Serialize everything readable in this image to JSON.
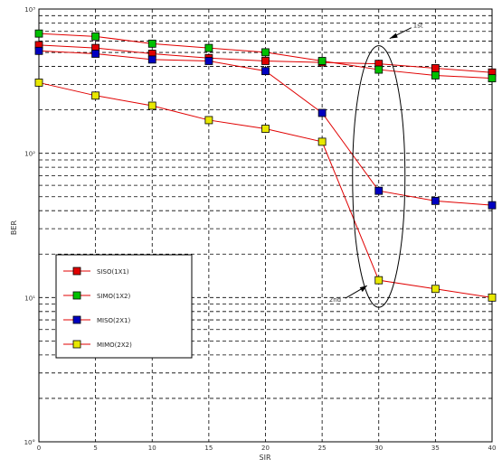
{
  "chart_data": {
    "type": "line",
    "xlabel": "SIR",
    "ylabel": "BER",
    "x_ticks": [
      "0",
      "5",
      "10",
      "15",
      "20",
      "25",
      "30",
      "35",
      "40"
    ],
    "y_ticks": [
      "10°",
      "10¹",
      "10²",
      "10³"
    ],
    "xlim": [
      0,
      40
    ],
    "ylim": [
      0,
      3
    ],
    "y_scale": "log",
    "grid": true,
    "legend_position": "bottom-left",
    "x": [
      0,
      5,
      10,
      15,
      20,
      25,
      30,
      35,
      40
    ],
    "series": [
      {
        "name": "SISO(1X1)",
        "color": "#e00000",
        "marker": "square",
        "values": [
          2.75,
          2.73,
          2.69,
          2.66,
          2.64,
          2.63,
          2.62,
          2.59,
          2.56
        ]
      },
      {
        "name": "SIMO(1X2)",
        "color": "#00c000",
        "marker": "square",
        "values": [
          2.83,
          2.81,
          2.76,
          2.73,
          2.7,
          2.64,
          2.58,
          2.54,
          2.52
        ]
      },
      {
        "name": "MISO(2X1)",
        "color": "#0000c0",
        "marker": "square",
        "values": [
          2.71,
          2.69,
          2.65,
          2.64,
          2.57,
          2.28,
          1.74,
          1.67,
          1.64
        ]
      },
      {
        "name": "MIMO(2X2)",
        "color": "#e8e800",
        "marker": "square",
        "values": [
          2.49,
          2.4,
          2.33,
          2.23,
          2.17,
          2.08,
          1.12,
          1.06,
          1.0
        ]
      }
    ],
    "annotations": [
      {
        "text": "1st",
        "type": "arrow-label",
        "x": 30,
        "y": 2.62
      },
      {
        "text": "2nd",
        "type": "arrow-label",
        "x": 30,
        "y": 1.12
      }
    ]
  }
}
